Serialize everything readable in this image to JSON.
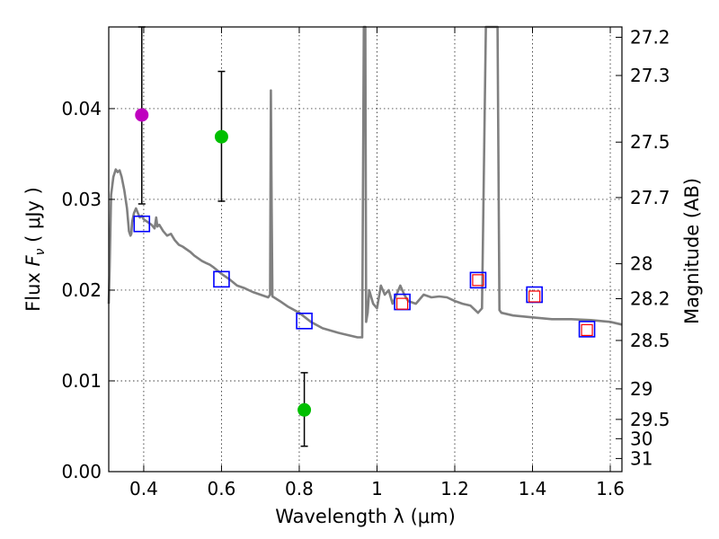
{
  "chart_data": {
    "type": "line",
    "xlabel": "Wavelength  λ (μm)",
    "ylabel_parts": [
      "Flux  ",
      "F",
      "ν",
      "  ( μJy )"
    ],
    "y2label": "Magnitude (AB)",
    "xlim": [
      0.31,
      1.63
    ],
    "ylim": [
      0.0,
      0.049
    ],
    "x_ticks": [
      0.4,
      0.6,
      0.8,
      1.0,
      1.2,
      1.4,
      1.6
    ],
    "x_tick_labels": [
      "0.4",
      "0.6",
      "0.8",
      "1",
      "1.2",
      "1.4",
      "1.6"
    ],
    "y_ticks": [
      0.0,
      0.01,
      0.02,
      0.03,
      0.04
    ],
    "y_tick_labels": [
      "0.00",
      "0.01",
      "0.02",
      "0.03",
      "0.04"
    ],
    "mag_ticks": [
      27.2,
      27.3,
      27.5,
      27.7,
      28,
      28.2,
      28.5,
      29,
      29.5,
      30,
      31
    ],
    "mag_tick_labels": [
      "27.2",
      "27.3",
      "27.5",
      "27.7",
      "28",
      "28.2",
      "28.5",
      "29",
      "29.5",
      "30",
      "31"
    ],
    "grid": true,
    "colors": {
      "sed": "#808080",
      "model_photometry": "#0000ff",
      "template_photometry": "#ff0000",
      "errorbar": "#000000",
      "point_violet": "#bf00bf",
      "point_green": "#00bf00"
    },
    "sed_model": {
      "x": [
        0.31,
        0.312,
        0.316,
        0.322,
        0.328,
        0.333,
        0.338,
        0.343,
        0.35,
        0.357,
        0.362,
        0.366,
        0.368,
        0.37,
        0.375,
        0.38,
        0.385,
        0.39,
        0.395,
        0.4,
        0.41,
        0.42,
        0.428,
        0.432,
        0.435,
        0.44,
        0.45,
        0.46,
        0.47,
        0.48,
        0.49,
        0.5,
        0.51,
        0.52,
        0.53,
        0.54,
        0.55,
        0.56,
        0.57,
        0.58,
        0.6,
        0.62,
        0.64,
        0.66,
        0.68,
        0.7,
        0.72,
        0.725,
        0.727,
        0.729,
        0.731,
        0.735,
        0.75,
        0.77,
        0.8,
        0.83,
        0.86,
        0.9,
        0.93,
        0.95,
        0.962,
        0.966,
        0.968,
        0.97,
        0.972,
        0.974,
        0.976,
        0.98,
        0.99,
        1.0,
        1.01,
        1.02,
        1.03,
        1.04,
        1.05,
        1.06,
        1.07,
        1.08,
        1.1,
        1.12,
        1.14,
        1.16,
        1.18,
        1.2,
        1.22,
        1.24,
        1.26,
        1.27,
        1.28,
        1.29,
        1.3,
        1.31,
        1.315,
        1.32,
        1.35,
        1.4,
        1.45,
        1.5,
        1.55,
        1.6,
        1.63
      ],
      "y": [
        0.0185,
        0.022,
        0.0305,
        0.0325,
        0.0333,
        0.033,
        0.0332,
        0.0325,
        0.031,
        0.029,
        0.0265,
        0.026,
        0.0262,
        0.0275,
        0.0285,
        0.029,
        0.0285,
        0.028,
        0.0282,
        0.0278,
        0.0275,
        0.0272,
        0.0268,
        0.028,
        0.027,
        0.0272,
        0.0265,
        0.026,
        0.0262,
        0.0255,
        0.025,
        0.0248,
        0.0245,
        0.0242,
        0.0238,
        0.0235,
        0.0232,
        0.023,
        0.0228,
        0.0225,
        0.0218,
        0.0212,
        0.0205,
        0.0202,
        0.0198,
        0.0195,
        0.0192,
        0.0195,
        0.042,
        0.03,
        0.0193,
        0.0192,
        0.0188,
        0.0182,
        0.0175,
        0.0165,
        0.0158,
        0.0153,
        0.015,
        0.0148,
        0.0148,
        0.049,
        0.049,
        0.049,
        0.0165,
        0.017,
        0.0175,
        0.02,
        0.0185,
        0.018,
        0.0205,
        0.0195,
        0.02,
        0.0185,
        0.0195,
        0.0205,
        0.0195,
        0.0188,
        0.0185,
        0.0195,
        0.0192,
        0.0193,
        0.0192,
        0.0188,
        0.0185,
        0.0183,
        0.0175,
        0.018,
        0.049,
        0.049,
        0.049,
        0.049,
        0.0178,
        0.0175,
        0.0172,
        0.017,
        0.0168,
        0.0168,
        0.0167,
        0.0165,
        0.0162
      ]
    },
    "model_photometry": {
      "x": [
        0.395,
        0.6,
        0.813,
        1.065,
        1.26,
        1.405,
        1.54
      ],
      "y": [
        0.0273,
        0.0212,
        0.0166,
        0.0187,
        0.0211,
        0.0195,
        0.0157
      ]
    },
    "template_photometry": {
      "x": [
        1.065,
        1.26,
        1.405,
        1.54
      ],
      "y": [
        0.0185,
        0.0211,
        0.0193,
        0.0156
      ]
    },
    "observed_points": [
      {
        "x": 0.395,
        "y": 0.0393,
        "yerr_low": 0.0295,
        "yerr_high": 0.049,
        "color_key": "point_violet"
      },
      {
        "x": 0.6,
        "y": 0.0369,
        "yerr_low": 0.0298,
        "yerr_high": 0.0441,
        "color_key": "point_green"
      },
      {
        "x": 0.813,
        "y": 0.0068,
        "yerr_low": 0.0028,
        "yerr_high": 0.0109,
        "color_key": "point_green"
      }
    ]
  }
}
